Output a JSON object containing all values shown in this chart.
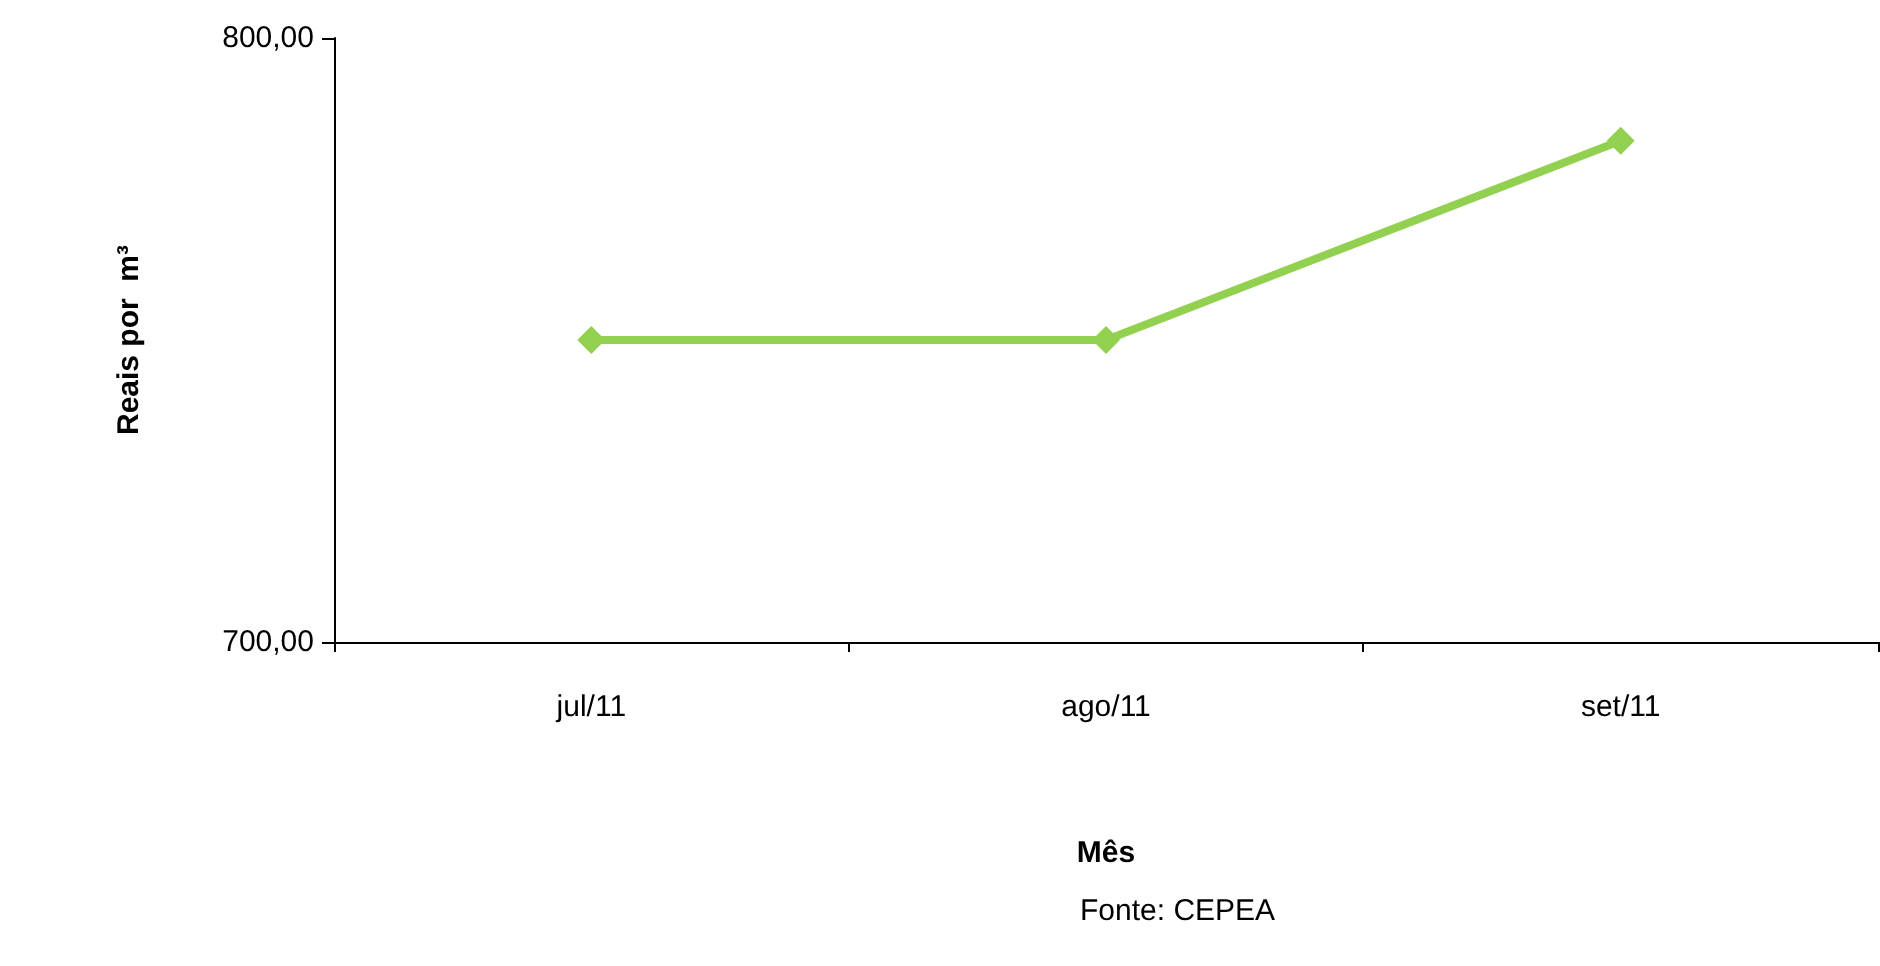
{
  "chart_data": {
    "type": "line",
    "xlabel": "Mês",
    "ylabel": "Reais por  m³",
    "categories": [
      "jul/11",
      "ago/11",
      "set/11"
    ],
    "series": [
      {
        "color": "#92d050",
        "values": [
          750,
          750,
          783
        ]
      }
    ],
    "ylim": [
      700,
      800
    ],
    "yticks": [
      {
        "value": 700,
        "label": "700,00"
      },
      {
        "value": 800,
        "label": "800,00"
      }
    ],
    "marker": "diamond",
    "grid": false,
    "annotations": [
      "Fonte: CEPEA"
    ]
  }
}
